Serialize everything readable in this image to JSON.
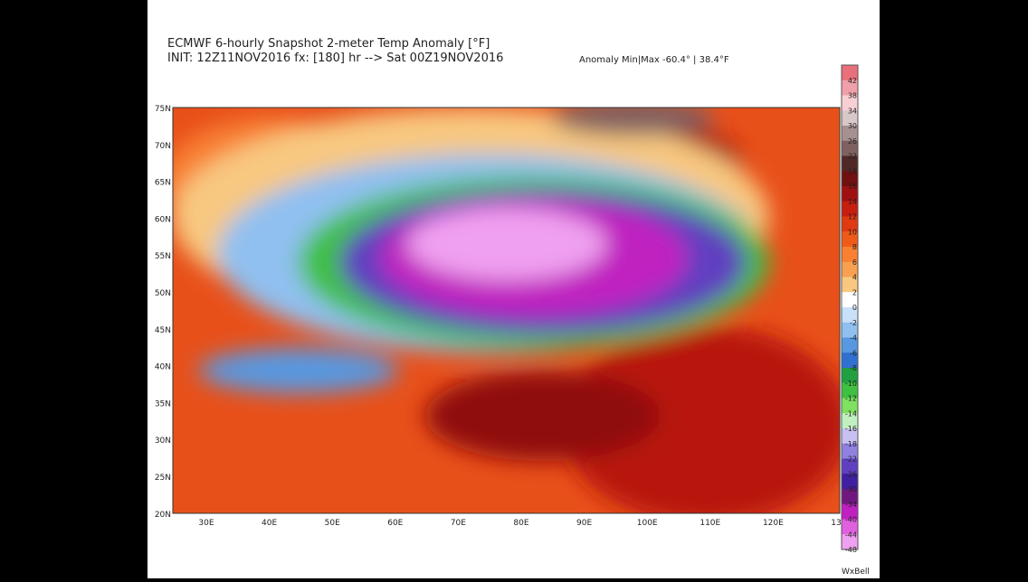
{
  "header": {
    "title": "ECMWF 6-hourly Snapshot 2-meter Temp Anomaly [°F]",
    "init": "INIT: 12Z11NOV2016 fx: [180] hr --> Sat 00Z19NOV2016",
    "minmax": "Anomaly Min|Max -60.4° | 38.4°F"
  },
  "map": {
    "lat_labels": [
      "75N",
      "70N",
      "65N",
      "60N",
      "55N",
      "50N",
      "45N",
      "40N",
      "35N",
      "30N",
      "25N",
      "20N"
    ],
    "lon_labels": [
      "30E",
      "40E",
      "50E",
      "60E",
      "70E",
      "80E",
      "90E",
      "100E",
      "110E",
      "120E",
      "13"
    ]
  },
  "colorbar": {
    "labels": [
      42,
      38,
      34,
      30,
      26,
      22,
      18,
      16,
      14,
      12,
      10,
      8,
      6,
      4,
      2,
      0,
      -2,
      -4,
      -6,
      -8,
      -10,
      -12,
      -14,
      -16,
      -18,
      -22,
      -26,
      -30,
      -34,
      -40,
      -44,
      -48
    ],
    "colors": [
      "#e8707a",
      "#f0a0a8",
      "#f8d0d4",
      "#d8c8c8",
      "#a89090",
      "#806060",
      "#502828",
      "#701010",
      "#a01010",
      "#c81e10",
      "#e03a10",
      "#f05a18",
      "#f88030",
      "#f8a050",
      "#f8c880",
      "#ffffff",
      "#c8e0f8",
      "#90c0f0",
      "#5898e0",
      "#3070d0",
      "#20a040",
      "#40c040",
      "#80e060",
      "#c0f0c0",
      "#c8c0f0",
      "#9080e0",
      "#6040c0",
      "#4020a0",
      "#701880",
      "#c020c0",
      "#e060e0",
      "#f0a0f0"
    ]
  },
  "footer": {
    "logo": "WxBell"
  }
}
